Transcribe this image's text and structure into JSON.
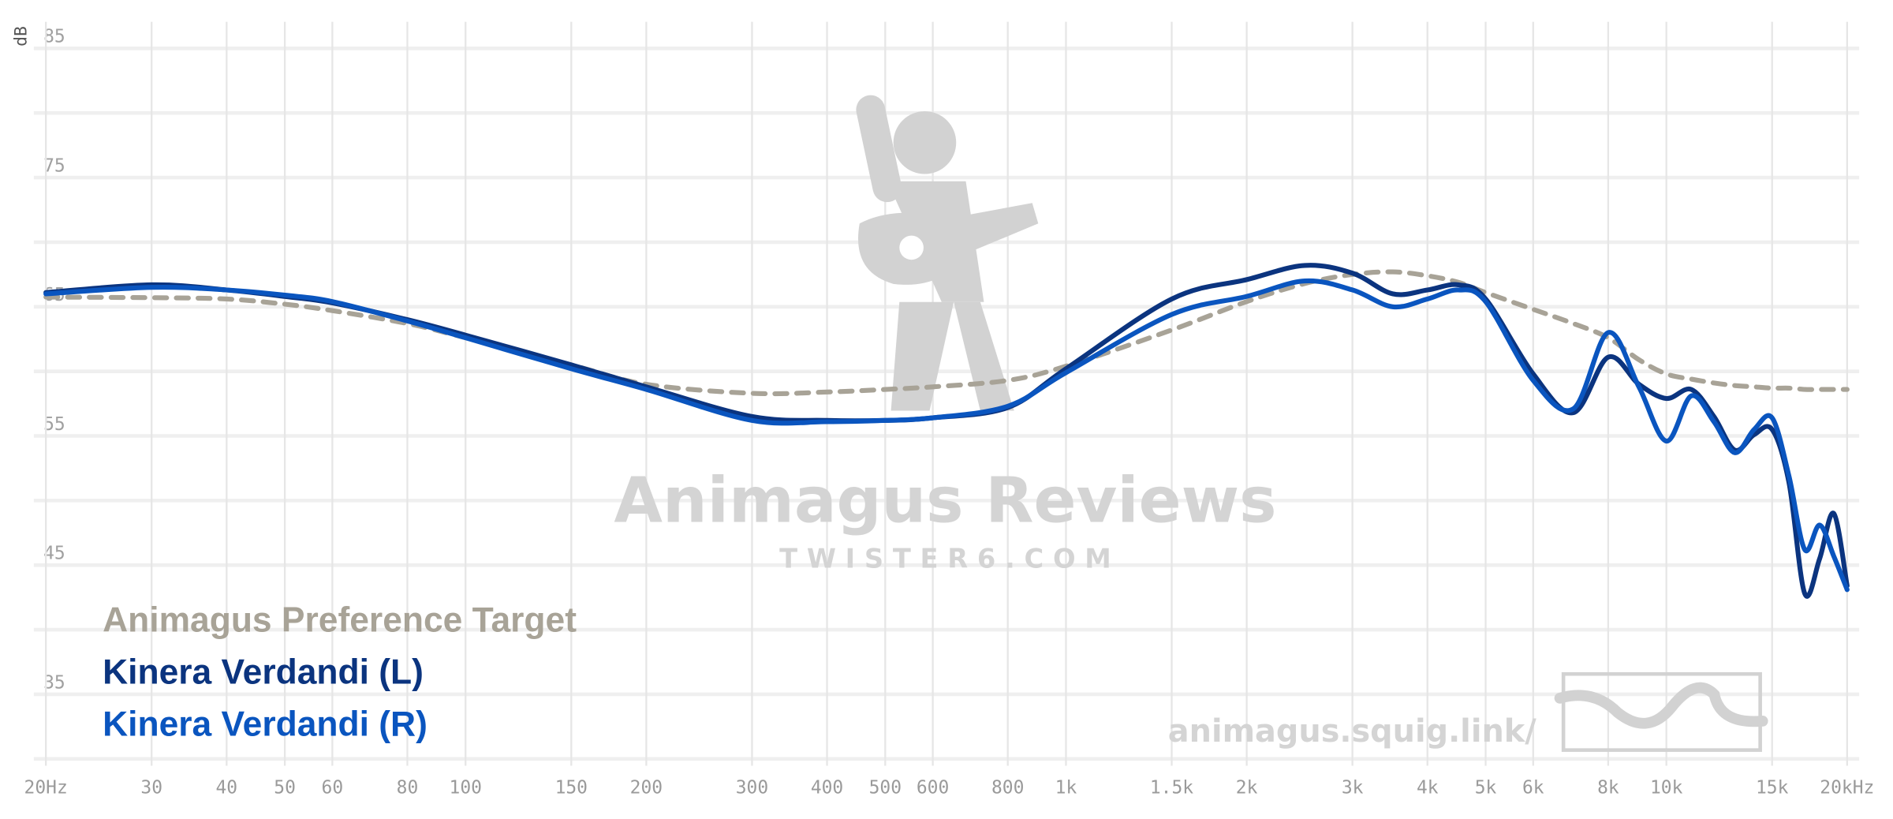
{
  "chart_data": {
    "type": "line",
    "ylabel": "dB",
    "xscale": "log",
    "grid": true,
    "legend": "lower left",
    "xlim": [
      20,
      20000
    ],
    "ylim": [
      29,
      87
    ],
    "xticks": [
      {
        "value": 20,
        "label": "20Hz"
      },
      30,
      40,
      50,
      60,
      80,
      100,
      150,
      200,
      300,
      400,
      500,
      600,
      800,
      {
        "value": 1000,
        "label": "1k"
      },
      {
        "value": 1500,
        "label": "1.5k"
      },
      {
        "value": 2000,
        "label": "2k"
      },
      {
        "value": 3000,
        "label": "3k"
      },
      {
        "value": 4000,
        "label": "4k"
      },
      {
        "value": 5000,
        "label": "5k"
      },
      {
        "value": 6000,
        "label": "6k"
      },
      {
        "value": 8000,
        "label": "8k"
      },
      {
        "value": 10000,
        "label": "10k"
      },
      {
        "value": 15000,
        "label": "15k"
      },
      {
        "value": 20000,
        "label": "20kHz"
      }
    ],
    "yticks": [
      85,
      75,
      65,
      55,
      45,
      35
    ],
    "ygrid": [
      85,
      80,
      75,
      70,
      65,
      60,
      55,
      50,
      45,
      40,
      35,
      30
    ],
    "watermark": {
      "title": "Animagus Reviews",
      "subtitle": "T W I S T E R 6 . C O M",
      "url": "animagus.squig.link/"
    },
    "x": [
      20,
      30,
      40,
      50,
      60,
      80,
      100,
      150,
      200,
      300,
      400,
      500,
      600,
      800,
      1000,
      1500,
      2000,
      2500,
      3000,
      3500,
      4000,
      4500,
      5000,
      6000,
      7000,
      8000,
      9000,
      10000,
      11000,
      12000,
      13000,
      14000,
      15000,
      16000,
      17000,
      18000,
      19000,
      20000
    ],
    "series": [
      {
        "name": "Animagus Preference Target",
        "color": "#a8a397",
        "dashed": true,
        "values": [
          65.75,
          65.7,
          65.6,
          65.2,
          64.7,
          63.7,
          62.6,
          60.5,
          59,
          58.3,
          58.4,
          58.6,
          58.8,
          59.3,
          60.4,
          63.2,
          65.4,
          66.8,
          67.5,
          67.7,
          67.4,
          66.9,
          66.1,
          64.8,
          63.7,
          62.6,
          60.9,
          59.8,
          59.4,
          59.1,
          58.9,
          58.8,
          58.7,
          58.7,
          58.6,
          58.6,
          58.6,
          58.6
        ]
      },
      {
        "name": "Kinera Verdandi (L)",
        "color": "#0b347f",
        "dashed": false,
        "values": [
          66.1,
          66.7,
          66.3,
          65.8,
          65.3,
          64,
          62.8,
          60.5,
          58.8,
          56.5,
          56.2,
          56.2,
          56.4,
          57.2,
          60.2,
          65.6,
          67.1,
          68.2,
          67.6,
          66,
          66.3,
          66.7,
          65.6,
          59.8,
          56.8,
          61.1,
          59,
          57.9,
          58.6,
          56.5,
          53.9,
          55.1,
          55.5,
          51.4,
          42.8,
          45.5,
          49,
          43.4
        ]
      },
      {
        "name": "Kinera Verdandi (R)",
        "color": "#0a55bf",
        "dashed": false,
        "values": [
          66,
          66.5,
          66.3,
          65.9,
          65.4,
          63.9,
          62.6,
          60.2,
          58.6,
          56.2,
          56.1,
          56.2,
          56.4,
          57.3,
          59.9,
          64.4,
          65.8,
          67,
          66.3,
          65,
          65.6,
          66.3,
          65.4,
          59.3,
          57.1,
          63,
          58.8,
          54.6,
          58.1,
          56.1,
          53.7,
          55.5,
          56.4,
          51.9,
          46.2,
          48.1,
          45.7,
          43.1
        ]
      }
    ]
  }
}
